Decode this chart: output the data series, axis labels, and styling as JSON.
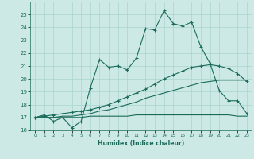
{
  "xlabel": "Humidex (Indice chaleur)",
  "background_color": "#cce9e5",
  "grid_color": "#aad4cf",
  "line_color": "#1a6b5a",
  "xlim": [
    -0.5,
    23.5
  ],
  "ylim": [
    16,
    26
  ],
  "xticks": [
    0,
    1,
    2,
    3,
    4,
    5,
    6,
    7,
    8,
    9,
    10,
    11,
    12,
    13,
    14,
    15,
    16,
    17,
    18,
    19,
    20,
    21,
    22,
    23
  ],
  "yticks": [
    16,
    17,
    18,
    19,
    20,
    21,
    22,
    23,
    24,
    25
  ],
  "series1_x": [
    0,
    1,
    2,
    3,
    4,
    5,
    6,
    7,
    8,
    9,
    10,
    11,
    12,
    13,
    14,
    15,
    16,
    17,
    18,
    19,
    20,
    21,
    22,
    23
  ],
  "series1_y": [
    17.0,
    17.2,
    16.7,
    17.0,
    16.2,
    16.7,
    19.3,
    21.5,
    20.9,
    21.0,
    20.7,
    21.6,
    23.9,
    23.8,
    25.3,
    24.3,
    24.1,
    24.4,
    22.5,
    21.2,
    19.1,
    18.3,
    18.3,
    17.3
  ],
  "series2_x": [
    0,
    1,
    2,
    3,
    4,
    5,
    6,
    7,
    8,
    9,
    10,
    11,
    12,
    13,
    14,
    15,
    16,
    17,
    18,
    19,
    20,
    21,
    22,
    23
  ],
  "series2_y": [
    17.0,
    17.0,
    17.0,
    17.1,
    17.1,
    17.2,
    17.3,
    17.5,
    17.6,
    17.8,
    18.0,
    18.2,
    18.5,
    18.7,
    18.9,
    19.1,
    19.3,
    19.5,
    19.7,
    19.8,
    19.9,
    19.9,
    19.9,
    19.9
  ],
  "series3_x": [
    0,
    1,
    2,
    3,
    4,
    5,
    6,
    7,
    8,
    9,
    10,
    11,
    12,
    13,
    14,
    15,
    16,
    17,
    18,
    19,
    20,
    21,
    22,
    23
  ],
  "series3_y": [
    17.0,
    17.1,
    17.2,
    17.3,
    17.4,
    17.5,
    17.6,
    17.8,
    18.0,
    18.3,
    18.6,
    18.9,
    19.2,
    19.6,
    20.0,
    20.3,
    20.6,
    20.9,
    21.0,
    21.1,
    21.0,
    20.8,
    20.4,
    19.8
  ],
  "series4_x": [
    0,
    1,
    2,
    3,
    4,
    5,
    6,
    7,
    8,
    9,
    10,
    11,
    12,
    13,
    14,
    15,
    16,
    17,
    18,
    19,
    20,
    21,
    22,
    23
  ],
  "series4_y": [
    17.0,
    17.0,
    17.0,
    17.0,
    17.0,
    17.0,
    17.1,
    17.1,
    17.1,
    17.1,
    17.1,
    17.2,
    17.2,
    17.2,
    17.2,
    17.2,
    17.2,
    17.2,
    17.2,
    17.2,
    17.2,
    17.2,
    17.1,
    17.1
  ]
}
